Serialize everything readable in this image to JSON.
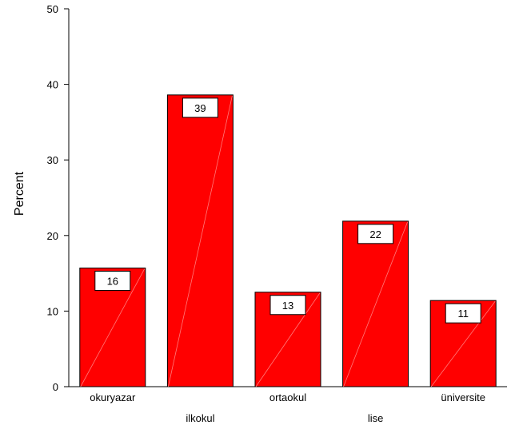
{
  "chart_data": {
    "type": "bar",
    "categories": [
      "okuryazar",
      "ilkokul",
      "ortaokul",
      "lise",
      "üniversite"
    ],
    "values": [
      15.7,
      38.6,
      12.5,
      21.9,
      11.4
    ],
    "data_labels": [
      "16",
      "39",
      "13",
      "22",
      "11"
    ],
    "ylabel": "Percent",
    "xlabel": "",
    "ylim": [
      0,
      50
    ],
    "yticks": [
      0,
      10,
      20,
      30,
      40,
      50
    ],
    "grid": false,
    "legend": "none",
    "bar_color": "#ff0000",
    "bar_stroke": "#000000"
  }
}
